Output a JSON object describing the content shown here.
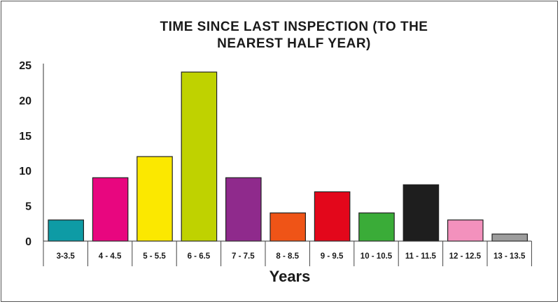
{
  "chart_data": {
    "type": "bar",
    "title_lines": [
      "TIME SINCE LAST INSPECTION (TO THE",
      "NEAREST HALF YEAR)"
    ],
    "xlabel": "Years",
    "ylabel": "",
    "categories": [
      "3-3.5",
      "4 - 4.5",
      "5 - 5.5",
      "6 - 6.5",
      "7 - 7.5",
      "8 - 8.5",
      "9 - 9.5",
      "10 - 10.5",
      "11 - 11.5",
      "12 - 12.5",
      "13 - 13.5"
    ],
    "values": [
      3,
      9,
      12,
      24,
      9,
      4,
      7,
      4,
      8,
      3,
      1
    ],
    "colors": [
      "#0e9ba5",
      "#e8067f",
      "#fbe800",
      "#bfd200",
      "#8f2a8c",
      "#ef5417",
      "#e3071b",
      "#3aac38",
      "#1e1e1e",
      "#f391bd",
      "#9d9d9d"
    ],
    "ylim": [
      0,
      25
    ],
    "yticks": [
      "0",
      "5",
      "10",
      "15",
      "20",
      "25"
    ],
    "grid": false,
    "legend": "none"
  }
}
